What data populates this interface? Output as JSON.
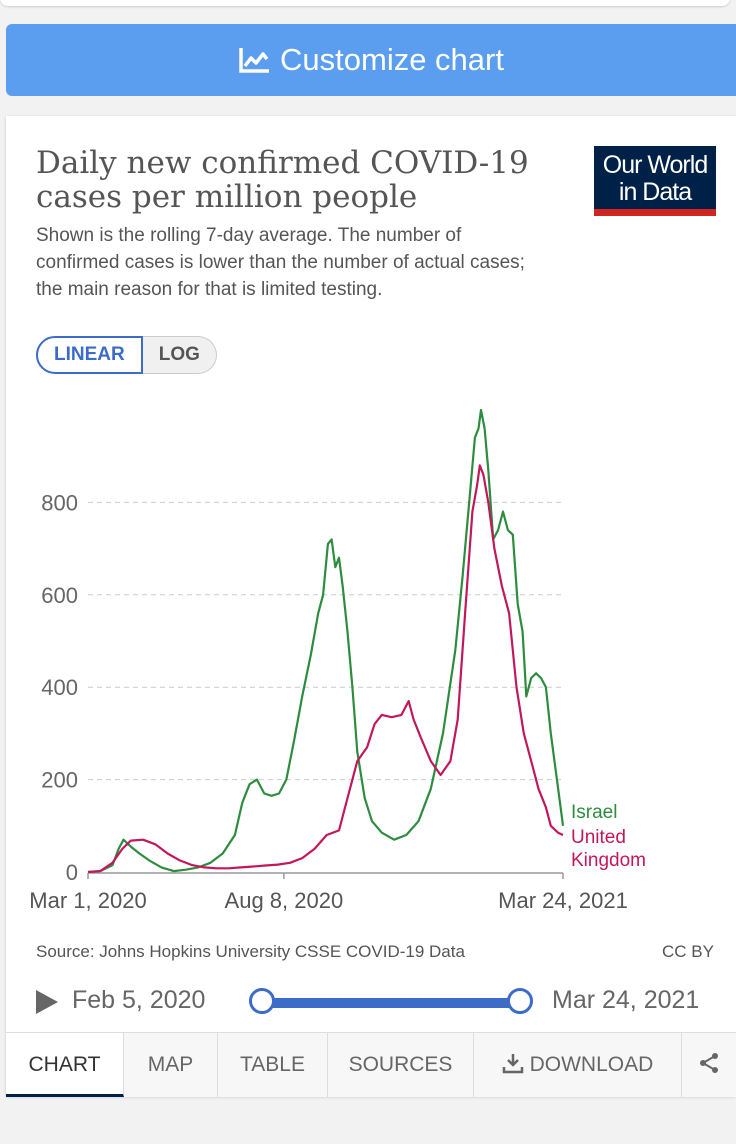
{
  "customize_button": {
    "label": "Customize chart",
    "icon": "chart-line-icon"
  },
  "chart": {
    "title": "Daily new confirmed COVID-19 cases per million people",
    "subtitle": "Shown is the rolling 7-day average. The number of confirmed cases is lower than the number of actual cases; the main reason for that is limited testing.",
    "logo_line1": "Our World",
    "logo_line2": "in Data",
    "scale_linear": "LINEAR",
    "scale_log": "LOG",
    "source": "Source: Johns Hopkins University CSSE COVID-19 Data",
    "license": "CC BY"
  },
  "timeline": {
    "start": "Feb 5, 2020",
    "end": "Mar 24, 2021",
    "range_start": 0,
    "range_end": 1
  },
  "tabs": [
    {
      "label": "CHART",
      "active": true
    },
    {
      "label": "MAP"
    },
    {
      "label": "TABLE"
    },
    {
      "label": "SOURCES"
    },
    {
      "label": "DOWNLOAD"
    }
  ],
  "colors": {
    "israel": "#2e8c3f",
    "uk": "#c2185b",
    "accent": "#3c6bc8"
  },
  "chart_data": {
    "type": "line",
    "ylim": [
      0,
      1000
    ],
    "yticks": [
      0,
      200,
      400,
      600,
      800
    ],
    "x_tick_labels": [
      "Mar 1, 2020",
      "Aug 8, 2020",
      "Mar 24, 2021"
    ],
    "x_tick_days": [
      0,
      160,
      388
    ],
    "series": [
      {
        "name": "Israel",
        "points": [
          [
            0,
            0
          ],
          [
            10,
            2
          ],
          [
            20,
            15
          ],
          [
            25,
            50
          ],
          [
            29,
            70
          ],
          [
            35,
            55
          ],
          [
            42,
            40
          ],
          [
            50,
            25
          ],
          [
            60,
            10
          ],
          [
            70,
            2
          ],
          [
            80,
            5
          ],
          [
            90,
            10
          ],
          [
            100,
            20
          ],
          [
            110,
            40
          ],
          [
            120,
            80
          ],
          [
            126,
            150
          ],
          [
            132,
            190
          ],
          [
            138,
            200
          ],
          [
            144,
            170
          ],
          [
            150,
            165
          ],
          [
            156,
            170
          ],
          [
            162,
            200
          ],
          [
            168,
            280
          ],
          [
            175,
            380
          ],
          [
            182,
            470
          ],
          [
            188,
            560
          ],
          [
            192,
            600
          ],
          [
            196,
            710
          ],
          [
            199,
            720
          ],
          [
            202,
            660
          ],
          [
            205,
            680
          ],
          [
            208,
            620
          ],
          [
            212,
            520
          ],
          [
            216,
            400
          ],
          [
            220,
            260
          ],
          [
            226,
            160
          ],
          [
            232,
            110
          ],
          [
            240,
            85
          ],
          [
            250,
            70
          ],
          [
            260,
            80
          ],
          [
            270,
            110
          ],
          [
            280,
            180
          ],
          [
            290,
            300
          ],
          [
            300,
            480
          ],
          [
            306,
            640
          ],
          [
            312,
            820
          ],
          [
            316,
            940
          ],
          [
            319,
            960
          ],
          [
            321,
            1000
          ],
          [
            324,
            960
          ],
          [
            327,
            870
          ],
          [
            331,
            720
          ],
          [
            335,
            740
          ],
          [
            339,
            780
          ],
          [
            343,
            740
          ],
          [
            347,
            730
          ],
          [
            351,
            580
          ],
          [
            355,
            520
          ],
          [
            358,
            380
          ],
          [
            362,
            420
          ],
          [
            366,
            430
          ],
          [
            370,
            420
          ],
          [
            374,
            400
          ],
          [
            378,
            300
          ],
          [
            382,
            220
          ],
          [
            386,
            140
          ],
          [
            388,
            100
          ]
        ]
      },
      {
        "name": "United Kingdom",
        "points": [
          [
            0,
            0
          ],
          [
            10,
            2
          ],
          [
            20,
            20
          ],
          [
            28,
            50
          ],
          [
            35,
            68
          ],
          [
            45,
            70
          ],
          [
            55,
            60
          ],
          [
            65,
            40
          ],
          [
            75,
            25
          ],
          [
            85,
            15
          ],
          [
            95,
            10
          ],
          [
            105,
            8
          ],
          [
            115,
            8
          ],
          [
            125,
            10
          ],
          [
            135,
            12
          ],
          [
            145,
            14
          ],
          [
            155,
            16
          ],
          [
            165,
            20
          ],
          [
            175,
            30
          ],
          [
            185,
            50
          ],
          [
            195,
            80
          ],
          [
            205,
            90
          ],
          [
            212,
            160
          ],
          [
            220,
            240
          ],
          [
            228,
            270
          ],
          [
            234,
            320
          ],
          [
            240,
            340
          ],
          [
            248,
            335
          ],
          [
            256,
            340
          ],
          [
            262,
            370
          ],
          [
            266,
            330
          ],
          [
            272,
            290
          ],
          [
            280,
            240
          ],
          [
            288,
            210
          ],
          [
            296,
            240
          ],
          [
            302,
            330
          ],
          [
            308,
            560
          ],
          [
            314,
            780
          ],
          [
            318,
            840
          ],
          [
            320,
            880
          ],
          [
            323,
            860
          ],
          [
            327,
            800
          ],
          [
            332,
            700
          ],
          [
            338,
            620
          ],
          [
            344,
            560
          ],
          [
            350,
            400
          ],
          [
            356,
            300
          ],
          [
            362,
            240
          ],
          [
            368,
            180
          ],
          [
            374,
            140
          ],
          [
            378,
            100
          ],
          [
            384,
            85
          ],
          [
            388,
            80
          ]
        ]
      }
    ],
    "series_labels": [
      "Israel",
      "United",
      "Kingdom"
    ]
  }
}
